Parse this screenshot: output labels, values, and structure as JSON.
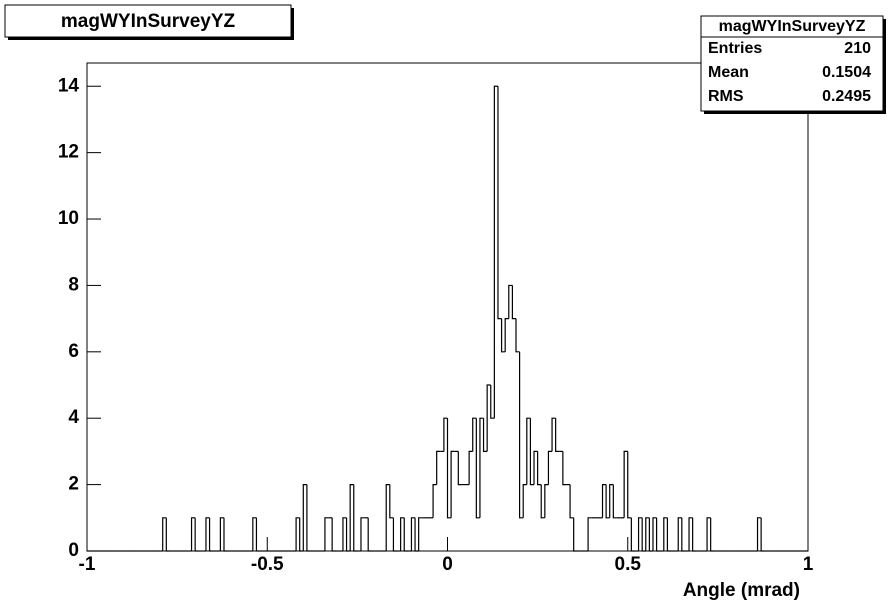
{
  "chart_data": {
    "type": "histogram",
    "title": "magWYInSurveyYZ",
    "x_label": "Angle (mrad)",
    "bins": [
      -1,
      -0.99,
      -0.98,
      -0.97,
      -0.96,
      -0.95,
      -0.94,
      -0.93,
      -0.92,
      -0.91,
      -0.9,
      -0.89,
      -0.88,
      -0.87,
      -0.86,
      -0.85,
      -0.84,
      -0.83,
      -0.82,
      -0.81,
      -0.8,
      -0.79,
      -0.78,
      -0.77,
      -0.76,
      -0.75,
      -0.74,
      -0.73,
      -0.72,
      -0.71,
      -0.7,
      -0.69,
      -0.68,
      -0.67,
      -0.66,
      -0.65,
      -0.64,
      -0.63,
      -0.62,
      -0.61,
      -0.6,
      -0.59,
      -0.58,
      -0.57,
      -0.56,
      -0.55,
      -0.54,
      -0.53,
      -0.52,
      -0.51,
      -0.5,
      -0.49,
      -0.48,
      -0.47,
      -0.46,
      -0.45,
      -0.44,
      -0.43,
      -0.42,
      -0.41,
      -0.4,
      -0.39,
      -0.38,
      -0.37,
      -0.36,
      -0.35,
      -0.34,
      -0.33,
      -0.32,
      -0.31,
      -0.3,
      -0.29,
      -0.28,
      -0.27,
      -0.26,
      -0.25,
      -0.24,
      -0.23,
      -0.22,
      -0.21,
      -0.2,
      -0.19,
      -0.18,
      -0.17,
      -0.16,
      -0.15,
      -0.14,
      -0.13,
      -0.12,
      -0.11,
      -0.1,
      -0.09,
      -0.08,
      -0.07,
      -0.06,
      -0.05,
      -0.04,
      -0.03,
      -0.02,
      -0.01,
      0,
      0.01,
      0.02,
      0.03,
      0.04,
      0.05,
      0.06,
      0.07,
      0.08,
      0.09,
      0.1,
      0.11,
      0.12,
      0.13,
      0.14,
      0.15,
      0.16,
      0.17,
      0.18,
      0.19,
      0.2,
      0.21,
      0.22,
      0.23,
      0.24,
      0.25,
      0.26,
      0.27,
      0.28,
      0.29,
      0.3,
      0.31,
      0.32,
      0.33,
      0.34,
      0.35,
      0.36,
      0.37,
      0.38,
      0.39,
      0.4,
      0.41,
      0.42,
      0.43,
      0.44,
      0.45,
      0.46,
      0.47,
      0.48,
      0.49,
      0.5,
      0.51,
      0.52,
      0.53,
      0.54,
      0.55,
      0.56,
      0.57,
      0.58,
      0.59,
      0.6,
      0.61,
      0.62,
      0.63,
      0.64,
      0.65,
      0.66,
      0.67,
      0.68,
      0.69,
      0.7,
      0.71,
      0.72,
      0.73,
      0.74,
      0.75,
      0.76,
      0.77,
      0.78,
      0.79,
      0.8,
      0.81,
      0.82,
      0.83,
      0.84,
      0.85,
      0.86,
      0.87,
      0.88,
      0.89,
      0.9,
      0.91,
      0.92,
      0.93,
      0.94,
      0.95,
      0.96,
      0.97,
      0.98,
      0.99,
      1
    ],
    "values": [
      0,
      0,
      0,
      0,
      0,
      0,
      0,
      0,
      0,
      0,
      0,
      0,
      0,
      0,
      0,
      0,
      0,
      0,
      0,
      0,
      0,
      1,
      0,
      0,
      0,
      0,
      0,
      0,
      0,
      1,
      0,
      0,
      0,
      1,
      0,
      0,
      0,
      1,
      0,
      0,
      0,
      0,
      0,
      0,
      0,
      0,
      1,
      0,
      0,
      0,
      0,
      0,
      0,
      0,
      0,
      0,
      0,
      0,
      1,
      0,
      2,
      0,
      0,
      0,
      0,
      0,
      1,
      1,
      0,
      0,
      0,
      1,
      0,
      2,
      0,
      0,
      1,
      1,
      0,
      0,
      0,
      0,
      0,
      2,
      1,
      0,
      0,
      1,
      0,
      0,
      1,
      0,
      1,
      1,
      1,
      1,
      2,
      3,
      3,
      4,
      1,
      3,
      3,
      2,
      2,
      2,
      3,
      4,
      1,
      4,
      3,
      5,
      4,
      14,
      7,
      6,
      7,
      8,
      7,
      6,
      1,
      2,
      4,
      2,
      3,
      2,
      1,
      2,
      3,
      4,
      3,
      3,
      2,
      2,
      1,
      0,
      0,
      0,
      0,
      1,
      1,
      1,
      1,
      2,
      1,
      2,
      1,
      1,
      1,
      3,
      1,
      0,
      0,
      1,
      0,
      1,
      0,
      1,
      0,
      0,
      1,
      0,
      0,
      0,
      1,
      0,
      0,
      1,
      0,
      0,
      0,
      0,
      1,
      0,
      0,
      0,
      0,
      0,
      0,
      0,
      0,
      0,
      0,
      0,
      0,
      0,
      1,
      0,
      0,
      0,
      0,
      0,
      0,
      0,
      0,
      0,
      0,
      0,
      0,
      0
    ],
    "color": "#000000",
    "xlim": [
      -1,
      1
    ],
    "xticks": [
      -1,
      -0.5,
      0,
      0.5,
      1
    ],
    "ylim": [
      0,
      14.7
    ],
    "yticks": [
      0,
      2,
      4,
      6,
      8,
      10,
      12,
      14
    ],
    "stats": {
      "rows": [
        {
          "label": "Entries",
          "value": "210"
        },
        {
          "label": "Mean",
          "value": "0.1504"
        },
        {
          "label": "RMS",
          "value": "0.2495"
        }
      ]
    }
  }
}
